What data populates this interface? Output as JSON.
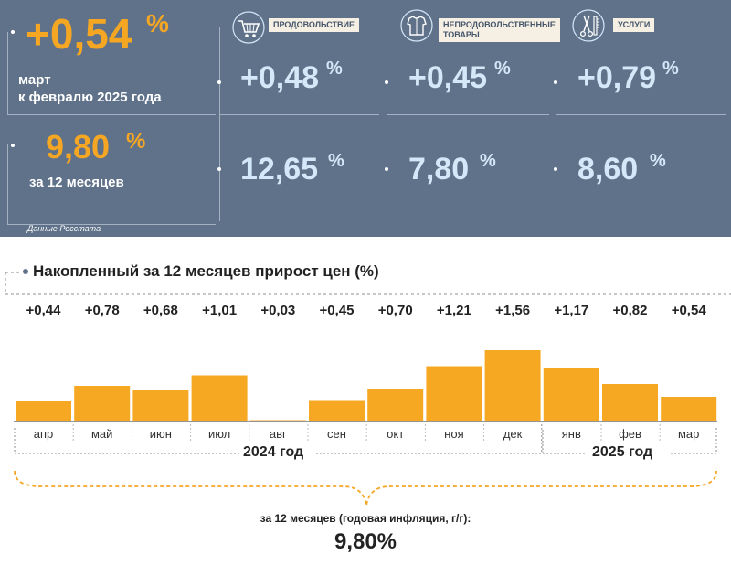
{
  "summary": {
    "monthly": {
      "value": "+0,54",
      "unit": "%",
      "desc_line1": "март",
      "desc_line2": "к февралю 2025 года"
    },
    "annual": {
      "value": "9,80",
      "unit": "%",
      "desc": "за 12 месяцев"
    },
    "source": "Данные Росстата"
  },
  "categories": [
    {
      "label": "ПРОДОВОЛЬСТВИЕ",
      "icon": "shopping-cart-icon",
      "monthly": "+0,48",
      "annual": "12,65",
      "unit": "%"
    },
    {
      "label_line1": "НЕПРОДОВОЛЬСТВЕННЫЕ",
      "label_line2": "ТОВАРЫ",
      "icon": "clothing-icon",
      "monthly": "+0,45",
      "annual": "7,80",
      "unit": "%"
    },
    {
      "label": "УСЛУГИ",
      "icon": "scissors-comb-icon",
      "monthly": "+0,79",
      "annual": "8,60",
      "unit": "%"
    }
  ],
  "colors": {
    "panel": "#5f7289",
    "accent_orange": "#f5a623",
    "light_blue": "#d3e8f8",
    "bar": "#f7a823",
    "label_bg": "#f6efe4"
  },
  "chart_data": {
    "type": "bar",
    "title": "Накопленный за 12 месяцев прирост цен (%)",
    "categories": [
      "апр",
      "май",
      "июн",
      "июл",
      "авг",
      "сен",
      "окт",
      "ноя",
      "дек",
      "янв",
      "фев",
      "мар"
    ],
    "values": [
      0.44,
      0.78,
      0.68,
      1.01,
      0.03,
      0.45,
      0.7,
      1.21,
      1.56,
      1.17,
      0.82,
      0.54
    ],
    "data_labels": [
      "+0,44",
      "+0,78",
      "+0,68",
      "+1,01",
      "+0,03",
      "+0,45",
      "+0,70",
      "+1,21",
      "+1,56",
      "+1,17",
      "+0,82",
      "+0,54"
    ],
    "year_groups": [
      {
        "label": "2024 год",
        "from": "апр",
        "to": "дек"
      },
      {
        "label": "2025 год",
        "from": "янв",
        "to": "мар"
      }
    ],
    "grid": false,
    "annual_label": "за 12 месяцев (годовая инфляция, г/г):",
    "annual_value": "9,80%"
  }
}
